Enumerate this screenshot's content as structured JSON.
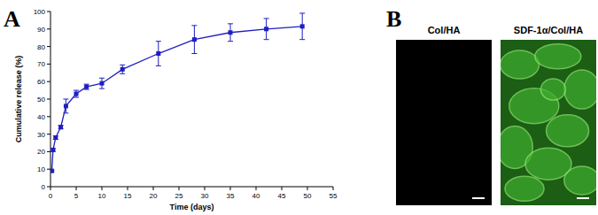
{
  "panel_labels": [
    "A",
    "B"
  ],
  "chart_data": {
    "type": "line",
    "x_label": "Time (days)",
    "y_label": "Cumulative release (%)",
    "x": [
      0.25,
      0.5,
      1,
      2,
      3,
      5,
      7,
      10,
      14,
      21,
      28,
      35,
      42,
      49
    ],
    "series": [
      {
        "color": "#1f1fbf",
        "marker": "square",
        "values": [
          9,
          21,
          28,
          34,
          46,
          53,
          57,
          59,
          67,
          76,
          84,
          88,
          90,
          91.5
        ],
        "errors": [
          0.5,
          0.8,
          1,
          1,
          4,
          2,
          1.5,
          3,
          2.5,
          7,
          8,
          5,
          6,
          7.5
        ]
      }
    ],
    "xlim": [
      0,
      55
    ],
    "xticks": [
      0,
      5,
      10,
      15,
      20,
      25,
      30,
      35,
      40,
      45,
      50,
      55
    ],
    "ylim": [
      0,
      100
    ],
    "yticks": [
      0,
      10,
      20,
      30,
      40,
      50,
      60,
      70,
      80,
      90,
      100
    ],
    "grid": false
  },
  "images": [
    {
      "title": "Col/HA"
    },
    {
      "title": "SDF-1α/Col/HA"
    }
  ]
}
